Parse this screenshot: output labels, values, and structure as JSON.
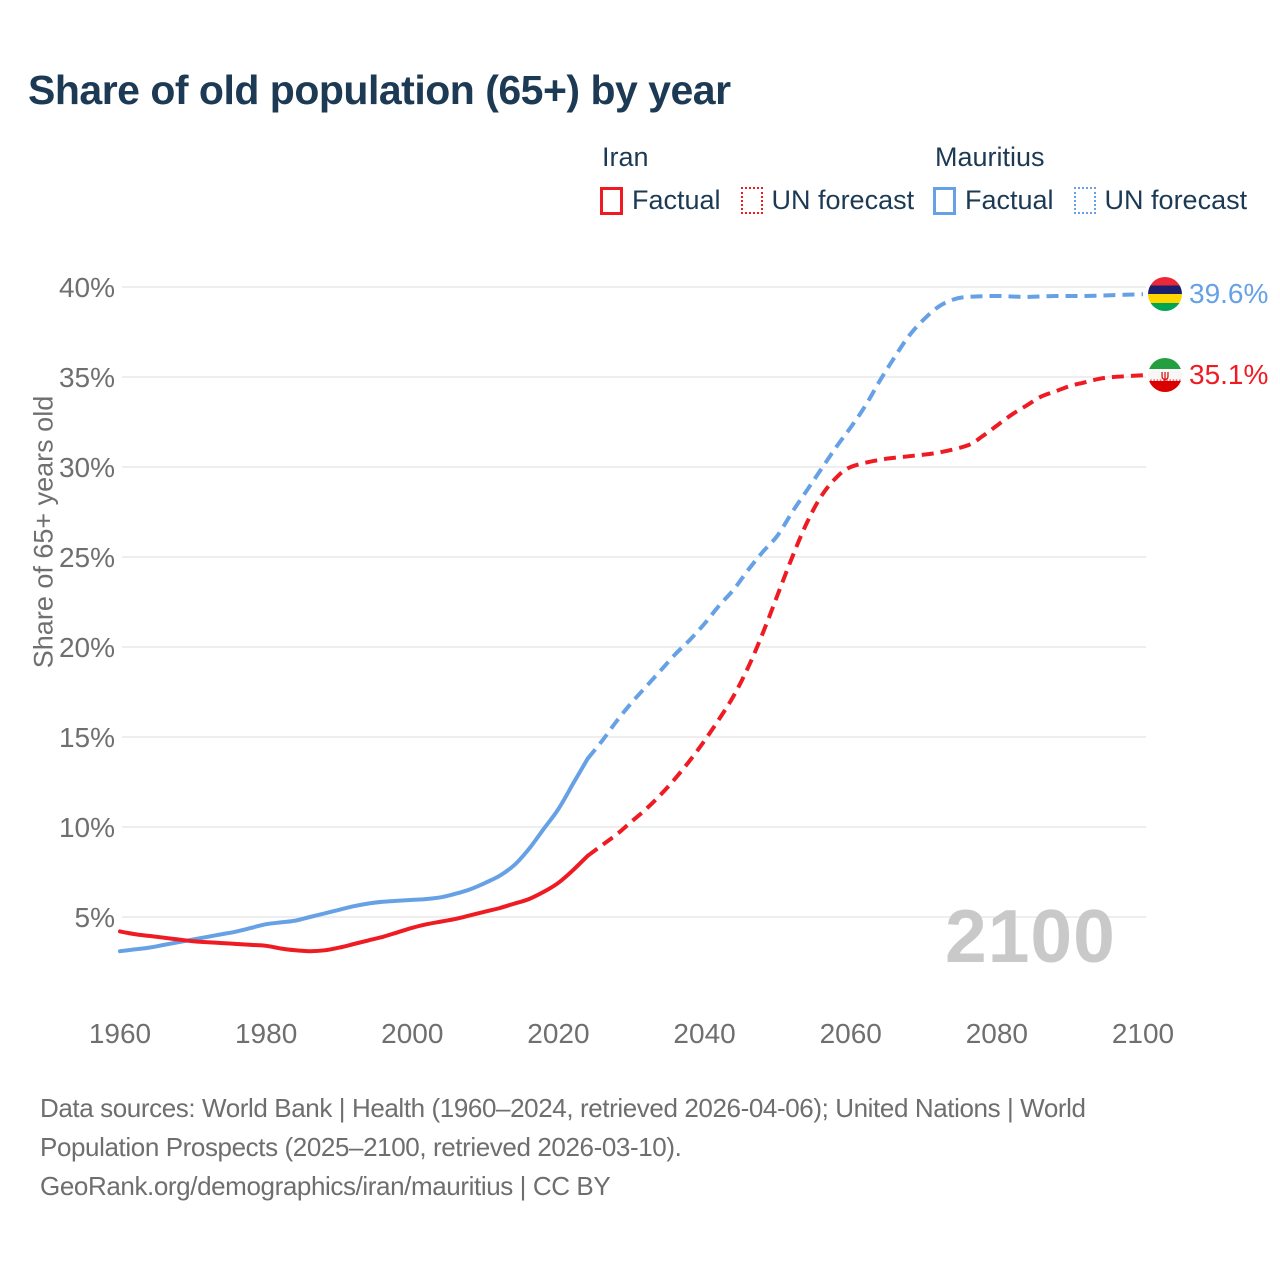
{
  "watermark": "2100",
  "legend": {
    "groups": [
      {
        "country": "Iran",
        "factual_label": "Factual",
        "forecast_label": "UN forecast",
        "color": "#ef1b22"
      },
      {
        "country": "Mauritius",
        "factual_label": "Factual",
        "forecast_label": "UN forecast",
        "color": "#66a1e5"
      }
    ]
  },
  "footer": {
    "lines": [
      "Data sources: World Bank | Health (1960–2024, retrieved 2026-04-06); United Nations | World",
      "Population Prospects (2025–2100, retrieved 2026-03-10).",
      "GeoRank.org/demographics/iran/mauritius | CC BY"
    ]
  },
  "chart_data": {
    "type": "line",
    "title": "Share of old population (65+) by year",
    "xlabel": "",
    "ylabel": "Share of 65+ years old",
    "xlim": [
      1960,
      2100
    ],
    "ylim": [
      2.5,
      41
    ],
    "grid": true,
    "legend_position": "top",
    "y_ticks": [
      {
        "value": 5,
        "label": "5%"
      },
      {
        "value": 10,
        "label": "10%"
      },
      {
        "value": 15,
        "label": "15%"
      },
      {
        "value": 20,
        "label": "20%"
      },
      {
        "value": 25,
        "label": "25%"
      },
      {
        "value": 30,
        "label": "30%"
      },
      {
        "value": 35,
        "label": "35%"
      },
      {
        "value": 40,
        "label": "40%"
      }
    ],
    "x_ticks": [
      {
        "value": 1960,
        "label": "1960"
      },
      {
        "value": 1980,
        "label": "1980"
      },
      {
        "value": 2000,
        "label": "2000"
      },
      {
        "value": 2020,
        "label": "2020"
      },
      {
        "value": 2040,
        "label": "2040"
      },
      {
        "value": 2060,
        "label": "2060"
      },
      {
        "value": 2080,
        "label": "2080"
      },
      {
        "value": 2100,
        "label": "2100"
      }
    ],
    "series": [
      {
        "name": "Mauritius — UN forecast",
        "country": "Mauritius",
        "kind": "forecast",
        "style": "dashed",
        "color": "#66a1e5",
        "points": [
          [
            2024,
            13.8
          ],
          [
            2026,
            14.8
          ],
          [
            2028,
            15.9
          ],
          [
            2030,
            16.9
          ],
          [
            2032,
            17.8
          ],
          [
            2034,
            18.7
          ],
          [
            2036,
            19.6
          ],
          [
            2038,
            20.4
          ],
          [
            2040,
            21.3
          ],
          [
            2042,
            22.3
          ],
          [
            2044,
            23.2
          ],
          [
            2046,
            24.3
          ],
          [
            2048,
            25.3
          ],
          [
            2050,
            26.2
          ],
          [
            2052,
            27.5
          ],
          [
            2054,
            28.7
          ],
          [
            2056,
            29.9
          ],
          [
            2058,
            31.1
          ],
          [
            2060,
            32.2
          ],
          [
            2062,
            33.4
          ],
          [
            2064,
            34.8
          ],
          [
            2066,
            36.1
          ],
          [
            2068,
            37.3
          ],
          [
            2070,
            38.2
          ],
          [
            2072,
            38.9
          ],
          [
            2074,
            39.3
          ],
          [
            2076,
            39.45
          ],
          [
            2080,
            39.5
          ],
          [
            2084,
            39.45
          ],
          [
            2088,
            39.5
          ],
          [
            2092,
            39.5
          ],
          [
            2096,
            39.55
          ],
          [
            2100,
            39.6
          ]
        ]
      },
      {
        "name": "Iran — UN forecast",
        "country": "Iran",
        "kind": "forecast",
        "style": "dashed",
        "color": "#ef1b22",
        "points": [
          [
            2024,
            8.4
          ],
          [
            2026,
            9.0
          ],
          [
            2028,
            9.6
          ],
          [
            2030,
            10.3
          ],
          [
            2032,
            11.0
          ],
          [
            2034,
            11.8
          ],
          [
            2036,
            12.7
          ],
          [
            2038,
            13.7
          ],
          [
            2040,
            14.8
          ],
          [
            2042,
            16.0
          ],
          [
            2044,
            17.3
          ],
          [
            2046,
            18.9
          ],
          [
            2048,
            20.8
          ],
          [
            2050,
            22.9
          ],
          [
            2052,
            25.0
          ],
          [
            2054,
            26.9
          ],
          [
            2056,
            28.4
          ],
          [
            2058,
            29.4
          ],
          [
            2060,
            30.0
          ],
          [
            2064,
            30.4
          ],
          [
            2068,
            30.6
          ],
          [
            2072,
            30.8
          ],
          [
            2076,
            31.2
          ],
          [
            2078,
            31.7
          ],
          [
            2080,
            32.3
          ],
          [
            2082,
            32.9
          ],
          [
            2084,
            33.4
          ],
          [
            2086,
            33.9
          ],
          [
            2088,
            34.2
          ],
          [
            2090,
            34.5
          ],
          [
            2092,
            34.7
          ],
          [
            2094,
            34.9
          ],
          [
            2096,
            35.0
          ],
          [
            2100,
            35.1
          ]
        ]
      },
      {
        "name": "Mauritius — Factual",
        "country": "Mauritius",
        "kind": "factual",
        "style": "solid",
        "color": "#66a1e5",
        "points": [
          [
            1960,
            3.1
          ],
          [
            1962,
            3.2
          ],
          [
            1964,
            3.3
          ],
          [
            1966,
            3.45
          ],
          [
            1968,
            3.6
          ],
          [
            1970,
            3.75
          ],
          [
            1972,
            3.9
          ],
          [
            1974,
            4.05
          ],
          [
            1976,
            4.2
          ],
          [
            1978,
            4.4
          ],
          [
            1980,
            4.6
          ],
          [
            1982,
            4.7
          ],
          [
            1984,
            4.8
          ],
          [
            1986,
            5.0
          ],
          [
            1988,
            5.2
          ],
          [
            1990,
            5.4
          ],
          [
            1992,
            5.6
          ],
          [
            1994,
            5.75
          ],
          [
            1996,
            5.85
          ],
          [
            1998,
            5.9
          ],
          [
            2000,
            5.95
          ],
          [
            2002,
            6.0
          ],
          [
            2004,
            6.1
          ],
          [
            2006,
            6.3
          ],
          [
            2008,
            6.55
          ],
          [
            2010,
            6.9
          ],
          [
            2012,
            7.3
          ],
          [
            2014,
            7.9
          ],
          [
            2016,
            8.8
          ],
          [
            2018,
            9.9
          ],
          [
            2020,
            11.0
          ],
          [
            2022,
            12.4
          ],
          [
            2024,
            13.8
          ]
        ]
      },
      {
        "name": "Iran — Factual",
        "country": "Iran",
        "kind": "factual",
        "style": "solid",
        "color": "#ef1b22",
        "points": [
          [
            1960,
            4.2
          ],
          [
            1962,
            4.05
          ],
          [
            1964,
            3.95
          ],
          [
            1966,
            3.85
          ],
          [
            1968,
            3.75
          ],
          [
            1970,
            3.65
          ],
          [
            1972,
            3.6
          ],
          [
            1974,
            3.55
          ],
          [
            1976,
            3.5
          ],
          [
            1978,
            3.45
          ],
          [
            1980,
            3.4
          ],
          [
            1982,
            3.25
          ],
          [
            1984,
            3.15
          ],
          [
            1986,
            3.1
          ],
          [
            1988,
            3.15
          ],
          [
            1990,
            3.3
          ],
          [
            1992,
            3.5
          ],
          [
            1994,
            3.7
          ],
          [
            1996,
            3.9
          ],
          [
            1998,
            4.15
          ],
          [
            2000,
            4.4
          ],
          [
            2002,
            4.6
          ],
          [
            2004,
            4.75
          ],
          [
            2006,
            4.9
          ],
          [
            2008,
            5.1
          ],
          [
            2010,
            5.3
          ],
          [
            2012,
            5.5
          ],
          [
            2014,
            5.75
          ],
          [
            2016,
            6.0
          ],
          [
            2018,
            6.4
          ],
          [
            2020,
            6.9
          ],
          [
            2022,
            7.6
          ],
          [
            2024,
            8.4
          ]
        ]
      }
    ],
    "end_annotations": [
      {
        "country": "Mauritius",
        "value": 39.6,
        "label": "39.6%",
        "color": "#66a1e5",
        "flag": "mauritius"
      },
      {
        "country": "Iran",
        "value": 35.1,
        "label": "35.1%",
        "color": "#ef1b22",
        "flag": "iran"
      }
    ]
  }
}
